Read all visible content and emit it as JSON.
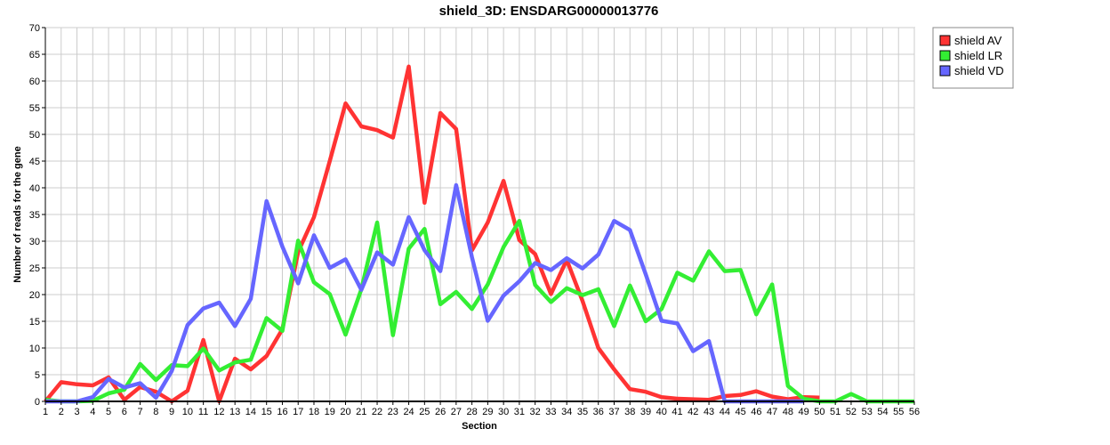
{
  "chart_data": {
    "type": "line",
    "title": "shield_3D: ENSDARG00000013776",
    "xlabel": "Section",
    "ylabel": "Number of reads for the gene",
    "ylim": [
      0,
      70
    ],
    "yticks": [
      0,
      5,
      10,
      15,
      20,
      25,
      30,
      35,
      40,
      45,
      50,
      55,
      60,
      65,
      70
    ],
    "x": [
      1,
      2,
      3,
      4,
      5,
      6,
      7,
      8,
      9,
      10,
      11,
      12,
      13,
      14,
      15,
      16,
      17,
      18,
      19,
      20,
      21,
      22,
      23,
      24,
      25,
      26,
      27,
      28,
      29,
      30,
      31,
      32,
      33,
      34,
      35,
      36,
      37,
      38,
      39,
      40,
      41,
      42,
      43,
      44,
      45,
      46,
      47,
      48,
      49,
      50,
      51,
      52,
      53,
      54,
      55,
      56
    ],
    "grid": true,
    "legend_position": "top-right outside",
    "series": [
      {
        "name": "shield AV",
        "color": "#ff3333",
        "values": [
          0,
          3.6,
          3.2,
          3.0,
          4.5,
          0.3,
          2.7,
          1.8,
          0,
          2.0,
          11.5,
          0,
          8.0,
          6.0,
          8.5,
          13.5,
          28,
          34.5,
          45,
          55.8,
          51.5,
          50.8,
          49.4,
          62.7,
          37.2,
          54,
          51,
          28.3,
          33.5,
          41.3,
          30.2,
          27.6,
          20.1,
          26.5,
          18.8,
          10.0,
          6.0,
          2.3,
          1.8,
          0.8,
          0.5,
          0.4,
          0.3,
          1.0,
          1.2,
          1.9,
          0.9,
          0.4,
          0.8,
          0.7,
          null,
          null,
          null,
          null,
          null,
          null
        ]
      },
      {
        "name": "shield LR",
        "color": "#33ee33",
        "values": [
          0.3,
          0,
          0,
          0.1,
          1.5,
          2.2,
          7.0,
          4.0,
          6.8,
          6.6,
          9.9,
          5.8,
          7.3,
          7.8,
          15.6,
          13.2,
          30.1,
          22.3,
          20.1,
          12.5,
          21.0,
          33.5,
          12.4,
          28.6,
          32.3,
          18.2,
          20.5,
          17.3,
          21.9,
          28.9,
          33.8,
          21.8,
          18.6,
          21.2,
          19.9,
          21.0,
          14.1,
          21.7,
          15.0,
          17.3,
          24.1,
          22.6,
          28.1,
          24.4,
          24.6,
          16.3,
          21.9,
          2.9,
          0.5,
          0,
          0,
          1.4,
          0,
          0,
          0,
          0
        ]
      },
      {
        "name": "shield VD",
        "color": "#6666ff",
        "values": [
          0,
          0,
          0,
          0.8,
          4.2,
          2.6,
          3.4,
          0.7,
          5.7,
          14.3,
          17.4,
          18.5,
          14.1,
          19.2,
          37.5,
          29.0,
          22.1,
          31.1,
          25.0,
          26.6,
          20.9,
          27.9,
          25.6,
          34.5,
          28.3,
          24.4,
          40.5,
          27.0,
          15.1,
          19.8,
          22.5,
          25.9,
          24.6,
          26.8,
          24.9,
          27.5,
          33.8,
          32.1,
          23.8,
          15.1,
          14.6,
          9.4,
          11.3,
          0,
          0,
          0,
          0,
          0,
          0,
          null,
          null,
          null,
          null,
          null,
          null,
          null
        ]
      }
    ]
  }
}
